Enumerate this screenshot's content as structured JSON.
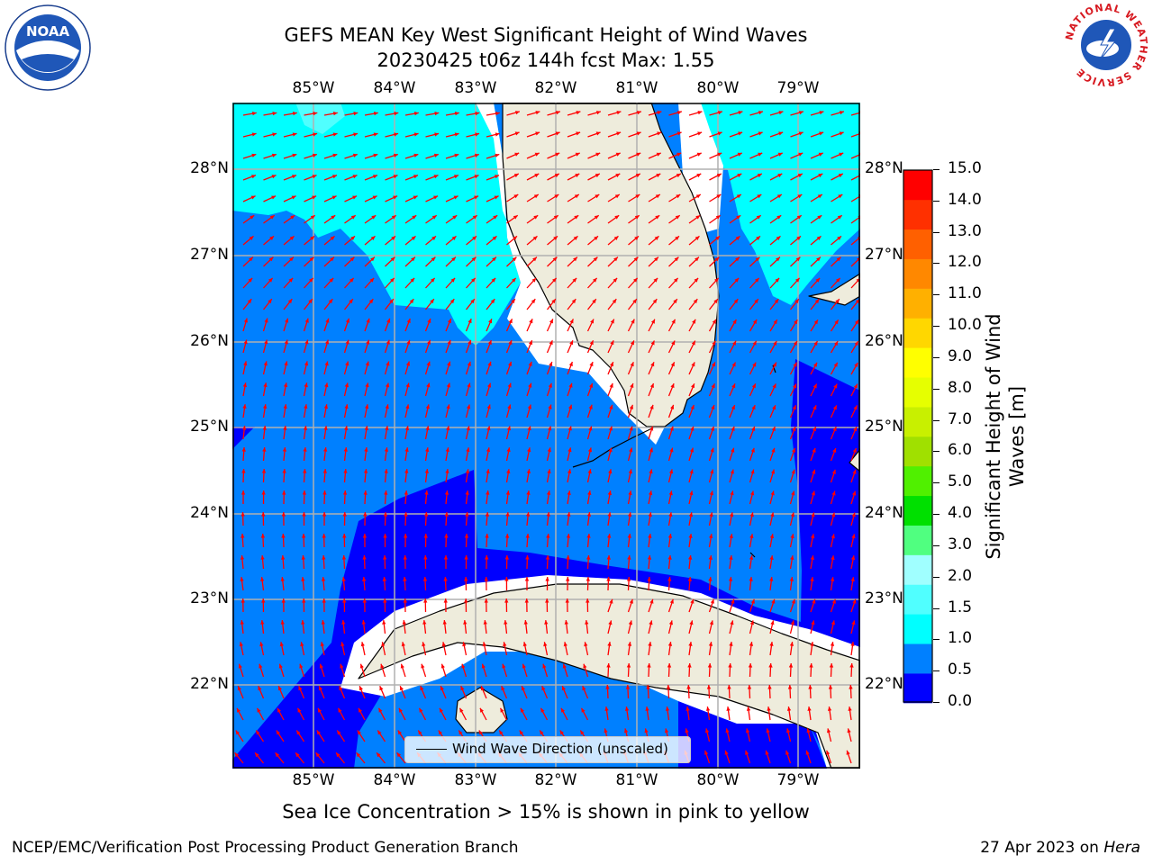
{
  "title": {
    "line1": "GEFS MEAN Key West Significant Height of Wind Waves",
    "line2": "20230425 t06z 144h fcst   Max: 1.55"
  },
  "logos": {
    "left": "noaa-logo",
    "right": "nws-logo",
    "right_text": "NATIONAL WEATHER SERVICE"
  },
  "map": {
    "lon_ticks": [
      "85°W",
      "84°W",
      "83°W",
      "82°W",
      "81°W",
      "80°W",
      "79°W"
    ],
    "lat_ticks": [
      "28°N",
      "27°N",
      "26°N",
      "25°N",
      "24°N",
      "23°N",
      "22°N"
    ],
    "lon_range": [
      -86,
      -78.3
    ],
    "lat_range": [
      21.07,
      28.75
    ],
    "colors": {
      "land": "#eeecdc",
      "coast": "#000000",
      "grid": "#b0b0b0",
      "arrows": "#ff0000",
      "nodata": "#ffffff"
    }
  },
  "legend": {
    "label": "Wind Wave Direction (unscaled)",
    "placement": "lower-center"
  },
  "colorbar": {
    "label_line1": "Significant Height of Wind",
    "label_line2": "Waves [m]",
    "ticks": [
      "15.0",
      "14.0",
      "13.0",
      "12.0",
      "11.0",
      "10.0",
      "9.0",
      "8.0",
      "7.0",
      "6.0",
      "5.0",
      "4.0",
      "3.0",
      "2.0",
      "1.5",
      "1.0",
      "0.5",
      "0.0"
    ],
    "colors": [
      "#0000ff",
      "#0080ff",
      "#00ffff",
      "#50ffff",
      "#a0ffff",
      "#50ff80",
      "#00e000",
      "#50f000",
      "#a0e000",
      "#c8f000",
      "#e6ff00",
      "#ffff00",
      "#ffd700",
      "#ffb000",
      "#ff8800",
      "#ff6000",
      "#ff3000",
      "#ff0000"
    ]
  },
  "caption": "Sea Ice Concentration > 15% is shown in pink to yellow",
  "footer": {
    "left": "NCEP/EMC/Verification Post Processing Product Generation Branch",
    "right_date": "27 Apr 2023 on ",
    "right_host": "Hera"
  }
}
